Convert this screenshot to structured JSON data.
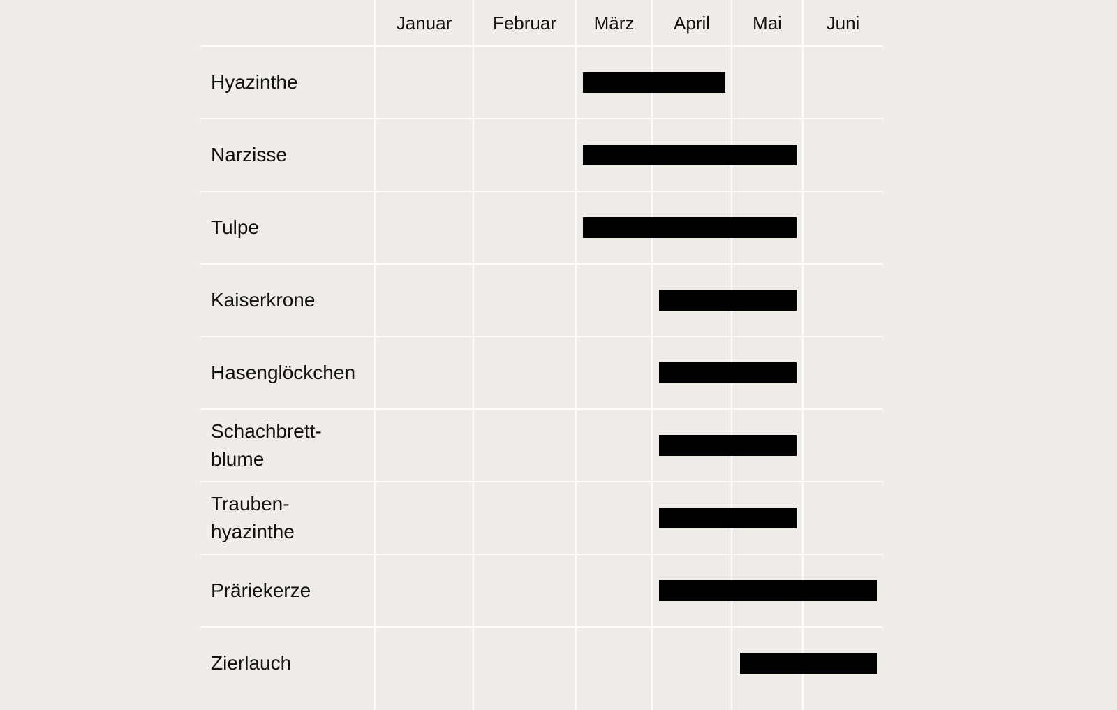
{
  "chart_data": {
    "type": "bar",
    "subtype": "gantt",
    "title": "",
    "months": [
      "Januar",
      "Februar",
      "März",
      "April",
      "Mai",
      "Juni"
    ],
    "bar_color": "#000000",
    "background_color": "#f0ede8",
    "grid": true,
    "rows": [
      {
        "label_lines": [
          "Hyazinthe"
        ],
        "start": "März",
        "end": "April"
      },
      {
        "label_lines": [
          "Narzisse"
        ],
        "start": "März",
        "end": "Mai"
      },
      {
        "label_lines": [
          "Tulpe"
        ],
        "start": "März",
        "end": "Mai"
      },
      {
        "label_lines": [
          "Kaiserkrone"
        ],
        "start": "April",
        "end": "Mai"
      },
      {
        "label_lines": [
          "Hasenglöckchen"
        ],
        "start": "April",
        "end": "Mai"
      },
      {
        "label_lines": [
          "Schachbrett-",
          "blume"
        ],
        "start": "April",
        "end": "Mai"
      },
      {
        "label_lines": [
          "Trauben-",
          "hyazinthe"
        ],
        "start": "April",
        "end": "Mai"
      },
      {
        "label_lines": [
          "Präriekerze"
        ],
        "start": "April",
        "end": "Juni"
      },
      {
        "label_lines": [
          "Zierlauch"
        ],
        "start": "Mai",
        "end": "Juni"
      }
    ]
  }
}
